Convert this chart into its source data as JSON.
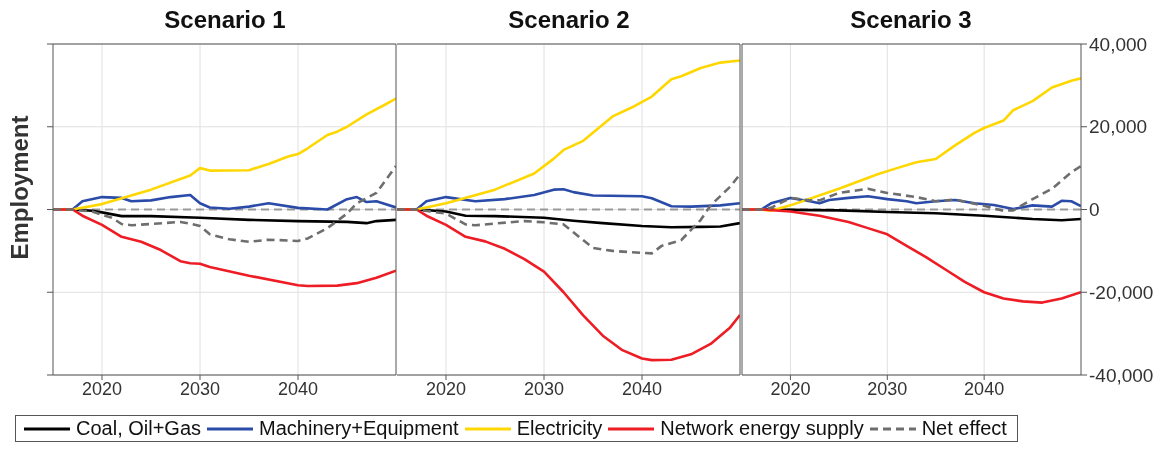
{
  "chart_data": [
    {
      "type": "line",
      "title": "Scenario 1",
      "ylabel": "Employment",
      "xlim": [
        2015,
        2050
      ],
      "xticks": [
        2020,
        2030,
        2040
      ],
      "ylim": [
        -40000,
        40000
      ],
      "yticks": [
        -40000,
        -20000,
        0,
        20000,
        40000
      ],
      "tick_labels": "x",
      "grid": true,
      "legend": "bottom",
      "marker": "none",
      "ref_lines": [
        {
          "axis": "y",
          "value": 0,
          "color": "#999999",
          "line_style": "dashed"
        }
      ],
      "series": [
        {
          "name": "Coal, Oil+Gas",
          "color": "#000000",
          "x": [
            2015,
            2017,
            2019,
            2020,
            2022,
            2025,
            2030,
            2035,
            2040,
            2045,
            2047,
            2048,
            2050
          ],
          "values": [
            0,
            0,
            -300,
            -700,
            -1600,
            -1600,
            -2000,
            -2500,
            -2800,
            -3000,
            -3300,
            -2800,
            -2500
          ]
        },
        {
          "name": "Machinery+Equipment",
          "color": "#2b4ba8",
          "x": [
            2015,
            2017,
            2018,
            2020,
            2022,
            2023,
            2025,
            2027,
            2029,
            2030,
            2031,
            2033,
            2035,
            2037,
            2040,
            2043,
            2045,
            2046,
            2047,
            2048,
            2050
          ],
          "values": [
            0,
            0,
            2000,
            3000,
            2800,
            2000,
            2200,
            3000,
            3500,
            1500,
            500,
            200,
            700,
            1500,
            400,
            0,
            2500,
            3000,
            1800,
            2000,
            500
          ]
        },
        {
          "name": "Electricity",
          "color": "#ffd700",
          "x": [
            2015,
            2017,
            2020,
            2025,
            2029,
            2030,
            2031,
            2035,
            2037,
            2039,
            2040,
            2041,
            2043,
            2044,
            2045,
            2047,
            2049,
            2050
          ],
          "values": [
            0,
            0,
            1300,
            4800,
            8200,
            10000,
            9400,
            9500,
            11000,
            12800,
            13400,
            14800,
            18000,
            18800,
            20000,
            23000,
            25500,
            26800
          ]
        },
        {
          "name": "Network energy supply",
          "color": "#ee1c24",
          "x": [
            2015,
            2017,
            2018,
            2020,
            2022,
            2024,
            2026,
            2028,
            2029,
            2030,
            2031,
            2035,
            2040,
            2041,
            2044,
            2046,
            2048,
            2050
          ],
          "values": [
            0,
            0,
            -1500,
            -3700,
            -6600,
            -7800,
            -9800,
            -12500,
            -13000,
            -13100,
            -13900,
            -16000,
            -18300,
            -18500,
            -18400,
            -17800,
            -16500,
            -14800
          ]
        },
        {
          "name": "Net effect",
          "color": "#6e6e6e",
          "line_style": "dashed",
          "x": [
            2015,
            2017,
            2019,
            2021,
            2022,
            2023,
            2025,
            2028,
            2029,
            2030,
            2031,
            2033,
            2035,
            2037,
            2040,
            2041,
            2043,
            2045,
            2046,
            2048,
            2050
          ],
          "values": [
            0,
            0,
            -500,
            -2000,
            -3500,
            -3800,
            -3500,
            -3000,
            -3400,
            -4000,
            -6000,
            -7200,
            -7800,
            -7300,
            -7600,
            -7000,
            -4500,
            -1000,
            1500,
            4000,
            10500
          ]
        }
      ]
    },
    {
      "type": "line",
      "title": "Scenario 2",
      "xlim": [
        2015,
        2050
      ],
      "xticks": [
        2020,
        2030,
        2040
      ],
      "ylim": [
        -40000,
        40000
      ],
      "yticks": [
        -40000,
        -20000,
        0,
        20000,
        40000
      ],
      "tick_labels": "x",
      "grid": true,
      "marker": "none",
      "ref_lines": [
        {
          "axis": "y",
          "value": 0,
          "color": "#999999",
          "line_style": "dashed"
        }
      ],
      "series": [
        {
          "color": "#000000",
          "x": [
            2015,
            2017,
            2020,
            2022,
            2025,
            2030,
            2033,
            2036,
            2040,
            2043,
            2046,
            2048,
            2050
          ],
          "values": [
            0,
            0,
            -500,
            -1500,
            -1600,
            -2000,
            -2700,
            -3300,
            -4000,
            -4300,
            -4200,
            -4100,
            -3300
          ]
        },
        {
          "color": "#2b4ba8",
          "x": [
            2015,
            2017,
            2018,
            2020,
            2023,
            2026,
            2029,
            2031,
            2032,
            2033,
            2035,
            2040,
            2041,
            2043,
            2045,
            2048,
            2050
          ],
          "values": [
            0,
            0,
            2000,
            3000,
            2000,
            2500,
            3500,
            4800,
            4900,
            4200,
            3400,
            3200,
            2700,
            800,
            700,
            1000,
            1500
          ]
        },
        {
          "color": "#ffd700",
          "x": [
            2015,
            2017,
            2020,
            2025,
            2029,
            2031,
            2032,
            2034,
            2037,
            2039,
            2041,
            2043,
            2044,
            2046,
            2048,
            2050
          ],
          "values": [
            0,
            0,
            1500,
            4800,
            8700,
            12300,
            14400,
            16600,
            22500,
            24700,
            27300,
            31500,
            32200,
            34200,
            35500,
            36000
          ]
        },
        {
          "color": "#ee1c24",
          "x": [
            2015,
            2017,
            2018,
            2020,
            2022,
            2024,
            2026,
            2028,
            2030,
            2032,
            2034,
            2036,
            2038,
            2040,
            2041,
            2043,
            2045,
            2047,
            2049,
            2050
          ],
          "values": [
            0,
            0,
            -1500,
            -3700,
            -6600,
            -7700,
            -9500,
            -12000,
            -15000,
            -20000,
            -25600,
            -30500,
            -34000,
            -36000,
            -36400,
            -36300,
            -35000,
            -32500,
            -28500,
            -25500
          ]
        },
        {
          "color": "#6e6e6e",
          "line_style": "dashed",
          "x": [
            2015,
            2017,
            2020,
            2022,
            2023,
            2025,
            2028,
            2030,
            2032,
            2033,
            2035,
            2037,
            2040,
            2041,
            2042,
            2044,
            2046,
            2047,
            2049,
            2050
          ],
          "values": [
            0,
            0,
            -1000,
            -3600,
            -3800,
            -3400,
            -2800,
            -3100,
            -3600,
            -5500,
            -9300,
            -10000,
            -10500,
            -10600,
            -8800,
            -7400,
            -2500,
            1000,
            5500,
            8500
          ]
        }
      ]
    },
    {
      "type": "line",
      "title": "Scenario 3",
      "xlim": [
        2015,
        2050
      ],
      "xticks": [
        2020,
        2030,
        2040
      ],
      "ylim": [
        -40000,
        40000
      ],
      "yticks": [
        {
          "value": -40000,
          "label": "-40,000"
        },
        {
          "value": -20000,
          "label": "-20,000"
        },
        {
          "value": 0,
          "label": "0"
        },
        {
          "value": 20000,
          "label": "20,000"
        },
        {
          "value": 40000,
          "label": "40,000"
        }
      ],
      "grid": true,
      "marker": "none",
      "ref_lines": [
        {
          "axis": "y",
          "value": 0,
          "color": "#999999",
          "line_style": "dashed"
        }
      ],
      "series": [
        {
          "color": "#000000",
          "x": [
            2015,
            2017,
            2020,
            2025,
            2030,
            2035,
            2040,
            2045,
            2048,
            2050
          ],
          "values": [
            0,
            0,
            -100,
            -200,
            -600,
            -900,
            -1500,
            -2300,
            -2600,
            -2300
          ]
        },
        {
          "color": "#2b4ba8",
          "x": [
            2015,
            2017,
            2018,
            2020,
            2022,
            2023,
            2024,
            2026,
            2028,
            2030,
            2032,
            2033,
            2035,
            2037,
            2039,
            2041,
            2043,
            2045,
            2047,
            2048,
            2049,
            2050
          ],
          "values": [
            0,
            0,
            1500,
            2800,
            2000,
            1500,
            2300,
            2800,
            3200,
            2500,
            2000,
            1500,
            2000,
            2300,
            1500,
            1100,
            100,
            1000,
            700,
            2100,
            2000,
            800
          ]
        },
        {
          "color": "#ffd700",
          "x": [
            2015,
            2017,
            2018,
            2020,
            2025,
            2029,
            2031,
            2033,
            2035,
            2037,
            2039,
            2040,
            2042,
            2043,
            2045,
            2047,
            2049,
            2050
          ],
          "values": [
            0,
            0,
            -300,
            1000,
            5000,
            8500,
            10000,
            11400,
            12200,
            15500,
            18500,
            19700,
            21500,
            24000,
            26200,
            29500,
            31100,
            31700
          ]
        },
        {
          "color": "#ee1c24",
          "x": [
            2015,
            2017,
            2020,
            2023,
            2026,
            2028,
            2030,
            2032,
            2034,
            2036,
            2038,
            2040,
            2042,
            2044,
            2046,
            2048,
            2050
          ],
          "values": [
            0,
            0,
            -500,
            -1500,
            -3000,
            -4500,
            -6000,
            -8800,
            -11500,
            -14500,
            -17500,
            -20000,
            -21500,
            -22200,
            -22500,
            -21500,
            -20000
          ]
        },
        {
          "color": "#6e6e6e",
          "line_style": "dashed",
          "x": [
            2015,
            2017,
            2018,
            2020,
            2022,
            2023,
            2025,
            2028,
            2030,
            2033,
            2035,
            2037,
            2040,
            2042,
            2043,
            2045,
            2047,
            2049,
            2050
          ],
          "values": [
            0,
            0,
            400,
            2800,
            2200,
            2200,
            4000,
            5000,
            4000,
            3000,
            2000,
            2400,
            900,
            -300,
            -200,
            2500,
            5000,
            9000,
            10500
          ]
        }
      ]
    }
  ]
}
